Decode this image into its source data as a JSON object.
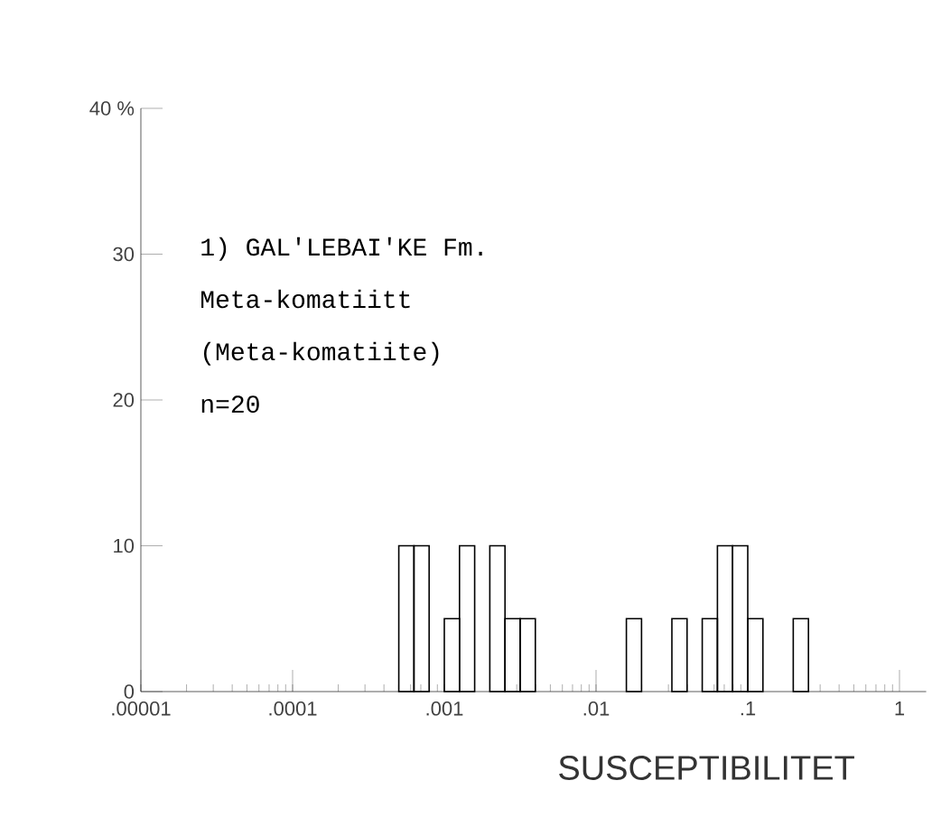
{
  "chart_data": {
    "type": "histogram",
    "xlabel": "SUSCEPTIBILITET",
    "annotations": [
      "1) GAL'LEBAI'KE Fm.",
      "Meta-komatiitt",
      "(Meta-komatiite)",
      "n=20"
    ],
    "bins": [
      0.0005012,
      0.000631,
      0.0007943,
      0.001,
      0.001259,
      0.001585,
      0.001995,
      0.002512,
      0.003162,
      0.003981,
      0.005012,
      0.00631,
      0.007943,
      0.01,
      0.01259,
      0.01585,
      0.01995,
      0.02512,
      0.03162,
      0.03981,
      0.05012,
      0.0631,
      0.07943,
      0.1,
      0.1259,
      0.1585,
      0.1995,
      0.2512
    ],
    "values": [
      10,
      10,
      0,
      5,
      10,
      0,
      10,
      5,
      5,
      0,
      0,
      0,
      0,
      0,
      0,
      5,
      0,
      0,
      5,
      0,
      5,
      10,
      10,
      5,
      0,
      0,
      5
    ],
    "color": "#000000",
    "log": "x",
    "xlim": [
      1e-05,
      1.5
    ],
    "xticks": [
      {
        "value": 1e-05,
        "label": ".00001"
      },
      {
        "value": 0.0001,
        "label": ".0001"
      },
      {
        "value": 0.001,
        "label": ".001"
      },
      {
        "value": 0.01,
        "label": ".01"
      },
      {
        "value": 0.1,
        "label": ".1"
      },
      {
        "value": 1,
        "label": "1"
      }
    ],
    "ylim": [
      0,
      40
    ],
    "yticks": [
      0,
      10,
      20,
      30,
      {
        "value": 40,
        "label": "40 %"
      }
    ]
  }
}
